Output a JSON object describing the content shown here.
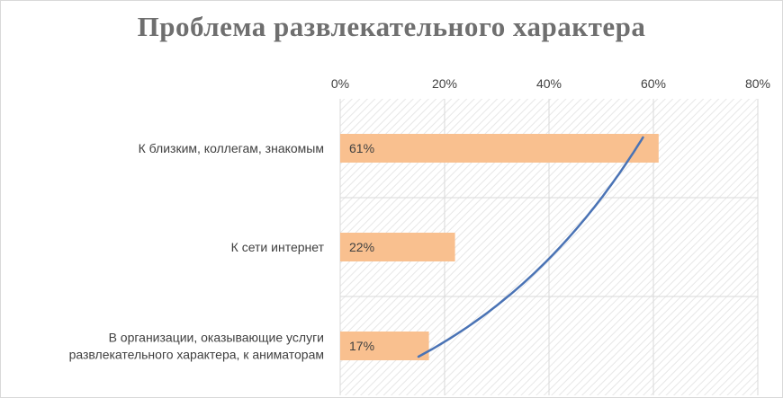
{
  "chart_data": {
    "type": "bar",
    "orientation": "horizontal",
    "title": "Проблема развлекательного характера",
    "categories": [
      "К близким, коллегам, знакомым",
      "К сети интернет",
      "В организации, оказывающие услуги развлекательного характера, к аниматорам"
    ],
    "category_lines": [
      [
        "К близким, коллегам, знакомым"
      ],
      [
        "К сети интернет"
      ],
      [
        "В организации, оказывающие услуги",
        "развлекательного характера, к аниматорам"
      ]
    ],
    "values": [
      0.61,
      0.22,
      0.17
    ],
    "data_labels": [
      "61%",
      "22%",
      "17%"
    ],
    "xlim": [
      0,
      0.8
    ],
    "x_ticks": [
      0,
      0.2,
      0.4,
      0.6,
      0.8
    ],
    "x_tick_labels": [
      "0%",
      "20%",
      "40%",
      "60%",
      "80%"
    ],
    "x_axis_position": "top",
    "grid": true,
    "plot_background": "hatched",
    "trendline": {
      "type": "logarithmic",
      "from_value": 0.15,
      "to_value": 0.58
    },
    "colors": {
      "bar": "#f9c08f",
      "trendline": "#4a73b5",
      "title": "#6f6f6f",
      "text": "#404040",
      "grid": "#d9d9d9",
      "hatch": "#e7e7e7"
    },
    "legend": "none"
  }
}
